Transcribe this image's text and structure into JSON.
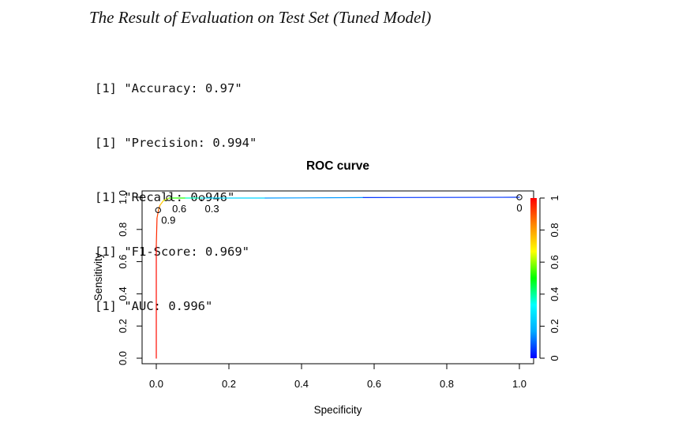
{
  "heading": "The Result of Evaluation on Test Set (Tuned Model)",
  "console": [
    {
      "prefix": "[1]",
      "text": "\"Accuracy: 0.97\""
    },
    {
      "prefix": "[1]",
      "text": "\"Precision: 0.994\""
    },
    {
      "prefix": "[1]",
      "text": "\"Recall: 0.946\""
    },
    {
      "prefix": "[1]",
      "text": "\"F1-Score: 0.969\""
    },
    {
      "prefix": "[1]",
      "text": "\"AUC: 0.996\""
    }
  ],
  "chart_data": {
    "type": "line",
    "title": "ROC curve",
    "xlabel": "Specificity",
    "ylabel": "Sensitivity",
    "xlim": [
      0,
      1
    ],
    "ylim": [
      0,
      1
    ],
    "grid": false,
    "x_ticks": [
      "0.0",
      "0.2",
      "0.4",
      "0.6",
      "0.8",
      "1.0"
    ],
    "y_ticks": [
      "0.0",
      "0.2",
      "0.4",
      "0.6",
      "0.8",
      "1.0"
    ],
    "series": [
      {
        "x": [
          0.0,
          0.0,
          0.002,
          0.006,
          0.01,
          0.02,
          0.035,
          0.08,
          0.125,
          0.3,
          0.57,
          1.0
        ],
        "y": [
          0.0,
          0.7,
          0.87,
          0.92,
          0.95,
          0.98,
          0.995,
          0.995,
          0.995,
          0.995,
          0.998,
          1.0
        ],
        "threshold": [
          1.0,
          0.97,
          0.93,
          0.9,
          0.8,
          0.7,
          0.6,
          0.45,
          0.3,
          0.2,
          0.1,
          0.0
        ]
      }
    ],
    "threshold_points": [
      {
        "x": 0.005,
        "y": 0.92,
        "label": "0.9"
      },
      {
        "x": 0.035,
        "y": 0.995,
        "label": "0.6"
      },
      {
        "x": 0.125,
        "y": 0.995,
        "label": "0.3"
      },
      {
        "x": 1.0,
        "y": 1.0,
        "label": "0"
      }
    ],
    "colorbar": {
      "range": [
        0,
        1
      ],
      "tick_labels": [
        "0",
        "0.2",
        "0.4",
        "0.6",
        "0.8",
        "1"
      ],
      "colors": [
        "#0000ff",
        "#00aaff",
        "#00ffff",
        "#00ff00",
        "#ffff00",
        "#ff8800",
        "#ff0000"
      ]
    }
  }
}
